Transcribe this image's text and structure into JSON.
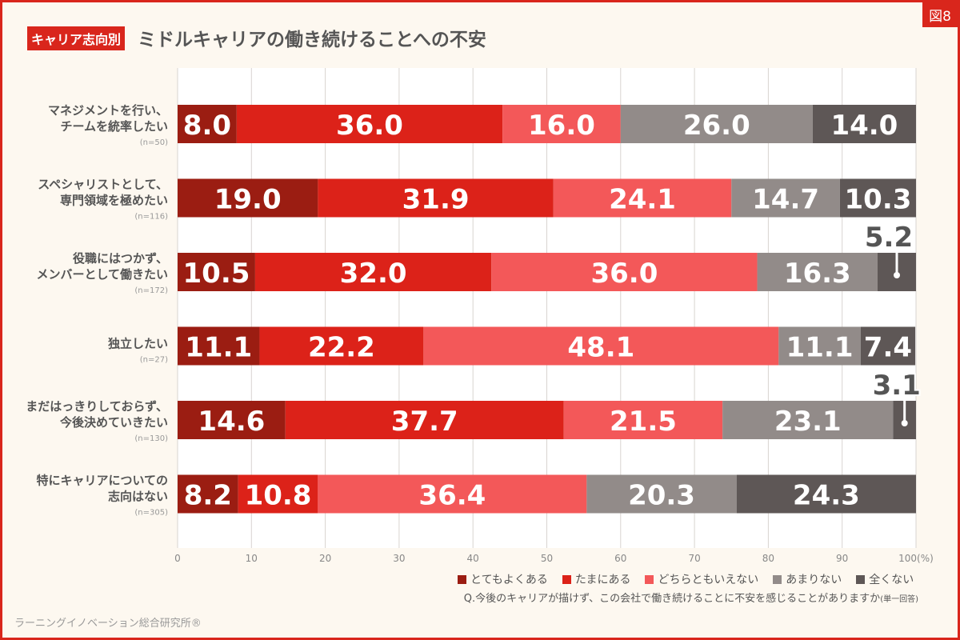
{
  "figure_label": "図8",
  "tag": "キャリア志向別",
  "title": "ミドルキャリアの働き続けることへの不安",
  "question": "Q.今後のキャリアが描けず、この会社で働き続けることに不安を感じることがありますか",
  "question_note": "(単一回答)",
  "credit": "ラーニングイノベーション総合研究所®",
  "chart_data": {
    "type": "bar",
    "orientation": "horizontal-stacked",
    "xlim": [
      0,
      100
    ],
    "x_ticks": [
      "0",
      "10",
      "20",
      "30",
      "40",
      "50",
      "60",
      "70",
      "80",
      "90",
      "100(%)"
    ],
    "grid": true,
    "legend_placement": "bottom-right",
    "categories": [
      {
        "label": [
          "マネジメントを行い、",
          "チームを統率したい"
        ],
        "n": "(n=50)"
      },
      {
        "label": [
          "スペシャリストとして、",
          "専門領域を極めたい"
        ],
        "n": "(n=116)"
      },
      {
        "label": [
          "役職にはつかず、",
          "メンバーとして働きたい"
        ],
        "n": "(n=172)"
      },
      {
        "label": [
          "独立したい"
        ],
        "n": "(n=27)"
      },
      {
        "label": [
          "まだはっきりしておらず、",
          "今後決めていきたい"
        ],
        "n": "(n=130)"
      },
      {
        "label": [
          "特にキャリアについての",
          "志向はない"
        ],
        "n": "(n=305)"
      }
    ],
    "series": [
      {
        "name": "とてもよくある",
        "color": "#9b1d12",
        "values": [
          8.0,
          19.0,
          10.5,
          11.1,
          14.6,
          8.2
        ]
      },
      {
        "name": "たまにある",
        "color": "#dc2219",
        "values": [
          36.0,
          31.9,
          32.0,
          22.2,
          37.7,
          10.8
        ]
      },
      {
        "name": "どちらともいえない",
        "color": "#f35859",
        "values": [
          16.0,
          24.1,
          36.0,
          48.1,
          21.5,
          36.4
        ]
      },
      {
        "name": "あまりない",
        "color": "#928b89",
        "values": [
          26.0,
          14.7,
          16.3,
          11.1,
          23.1,
          20.3
        ]
      },
      {
        "name": "全くない",
        "color": "#5e5756",
        "values": [
          14.0,
          10.3,
          5.2,
          7.4,
          3.1,
          24.3
        ]
      }
    ]
  }
}
